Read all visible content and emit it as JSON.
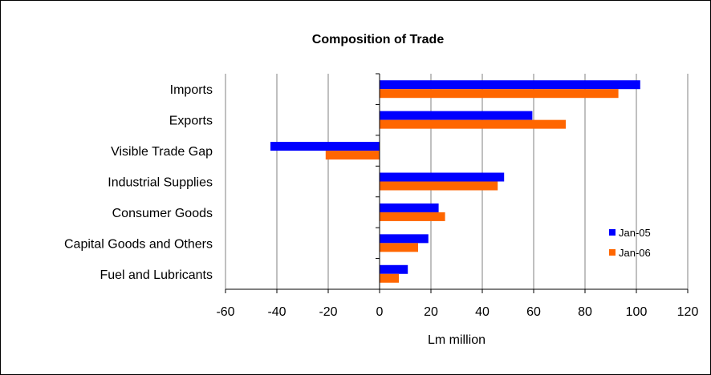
{
  "chart_data": {
    "type": "bar",
    "orientation": "horizontal",
    "title": "Composition of Trade",
    "xlabel": "Lm million",
    "ylabel": "",
    "xlim": [
      -60,
      120
    ],
    "xticks": [
      -60,
      -40,
      -20,
      0,
      20,
      40,
      60,
      80,
      100,
      120
    ],
    "categories": [
      "Imports",
      "Exports",
      "Visible Trade Gap",
      "Industrial Supplies",
      "Consumer Goods",
      "Capital Goods and Others",
      "Fuel and Lubricants"
    ],
    "series": [
      {
        "name": "Jan-05",
        "color": "#0000ff",
        "values": [
          101.5,
          59.5,
          -42.5,
          48.5,
          23,
          19,
          11
        ]
      },
      {
        "name": "Jan-06",
        "color": "#ff6600",
        "values": [
          93,
          72.5,
          -21,
          46,
          25.5,
          15,
          7.5
        ]
      }
    ],
    "grid": {
      "vertical": true,
      "horizontal": false
    },
    "legend_position": "right"
  }
}
